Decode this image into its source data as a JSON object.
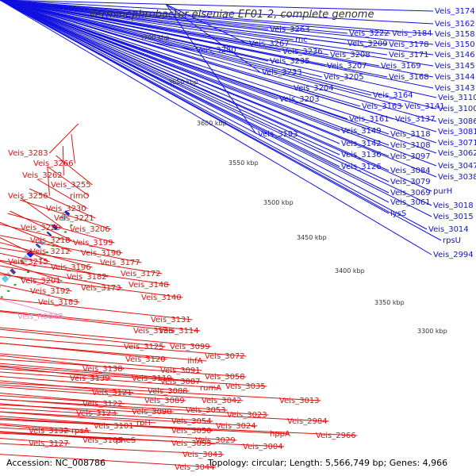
{
  "title": "Verminephrobacter eiseniae EF01-2, complete genome",
  "accession": "Accession: NC_008786",
  "topology": "Topology: circular; Length: 5,566,749 bp; Genes: 4,966",
  "colors": {
    "forward_label": "#1010e0",
    "reverse_label": "#e01010",
    "rna_label": "#e090d0",
    "backbone": "#888888",
    "tick_dot": "#229922"
  },
  "kbp_ticks": [
    "3700 kbp",
    "3650 kbp",
    "3600 kbp",
    "3550 kbp",
    "3500 kbp",
    "3450 kbp",
    "3400 kbp",
    "3350 kbp",
    "3300 kbp"
  ],
  "blue_labels": [
    "Veis_3174",
    "Veis_3162",
    "Veis_3158",
    "Veis_3150",
    "Veis_3146",
    "Veis_3145",
    "Veis_3144",
    "Veis_3143",
    "Veis_3141",
    "Veis_3137",
    "Veis_3184",
    "Veis_3178",
    "Veis_3171",
    "Veis_3169",
    "Veis_3168",
    "Veis_3164",
    "Veis_3163",
    "Veis_3161",
    "Veis_3263",
    "rnc",
    "Veis_3267",
    "Veis_3280",
    "Veis_3236",
    "Veis_3235",
    "Veis_3233",
    "Veis_3222",
    "Veis_3209",
    "Veis_3208",
    "Veis_3207",
    "Veis_3205",
    "Veis_3204",
    "Veis_3203",
    "Veis_3193",
    "Veis_3149",
    "Veis_3142",
    "Veis_3136",
    "Veis_3126",
    "Veis_3110",
    "Veis_3100",
    "Veis_3086",
    "Veis_3081",
    "Veis_3071",
    "Veis_3062",
    "Veis_3047",
    "Veis_3038",
    "Veis_3118",
    "Veis_3108",
    "Veis_3097",
    "Veis_3084",
    "Veis_3079",
    "Veis_3069",
    "Veis_3061",
    "lysS",
    "purH",
    "Veis_3018",
    "Veis_3015",
    "Veis_3014",
    "rpsU",
    "Veis_2994"
  ],
  "red_labels": [
    "Veis_3283",
    "Veis_3266",
    "Veis_3262",
    "Veis_3255",
    "Veis_3256",
    "rimO",
    "Veis_3230",
    "Veis_3221",
    "Veis_3229",
    "Veis_3206",
    "Veis_3218",
    "Veis_3199",
    "Veis_3212",
    "Veis_3190",
    "Veis_3215",
    "Veis_3196",
    "Veis_3177",
    "Veis_3182",
    "Veis_3172",
    "Veis_3201",
    "Veis_3192",
    "Veis_3173",
    "Veis_3148",
    "Veis_3183",
    "Veis_3140",
    "Veis_3131",
    "Veis_3135",
    "Veis_3114",
    "Veis_3125",
    "Veis_3099",
    "Veis_3120",
    "Veis_3072",
    "ihfA",
    "Veis_3138",
    "Veis_3091",
    "Veis_3139",
    "Veis_3119",
    "Veis_3087",
    "Veis_3058",
    "Veis_3121",
    "Veis_3088",
    "rumA",
    "Veis_3035",
    "Veis_3122",
    "Veis_3089",
    "Veis_3042",
    "Veis_3013",
    "Veis_3123",
    "Veis_3090",
    "Veis_3023",
    "Veis_3053",
    "Veis_3101",
    "Veis_3054",
    "Veis_3024",
    "Veis_2984",
    "Veis_3132",
    "rpsA",
    "rplT",
    "Veis_3050",
    "Veis_3029",
    "Veis_3004",
    "hppA",
    "Veis_3127",
    "Veis_3105",
    "pheS",
    "Veis_3055",
    "Veis_3043",
    "Veis_3044",
    "Veis_2966"
  ],
  "rna_labels": [
    "Veis_R0043"
  ]
}
